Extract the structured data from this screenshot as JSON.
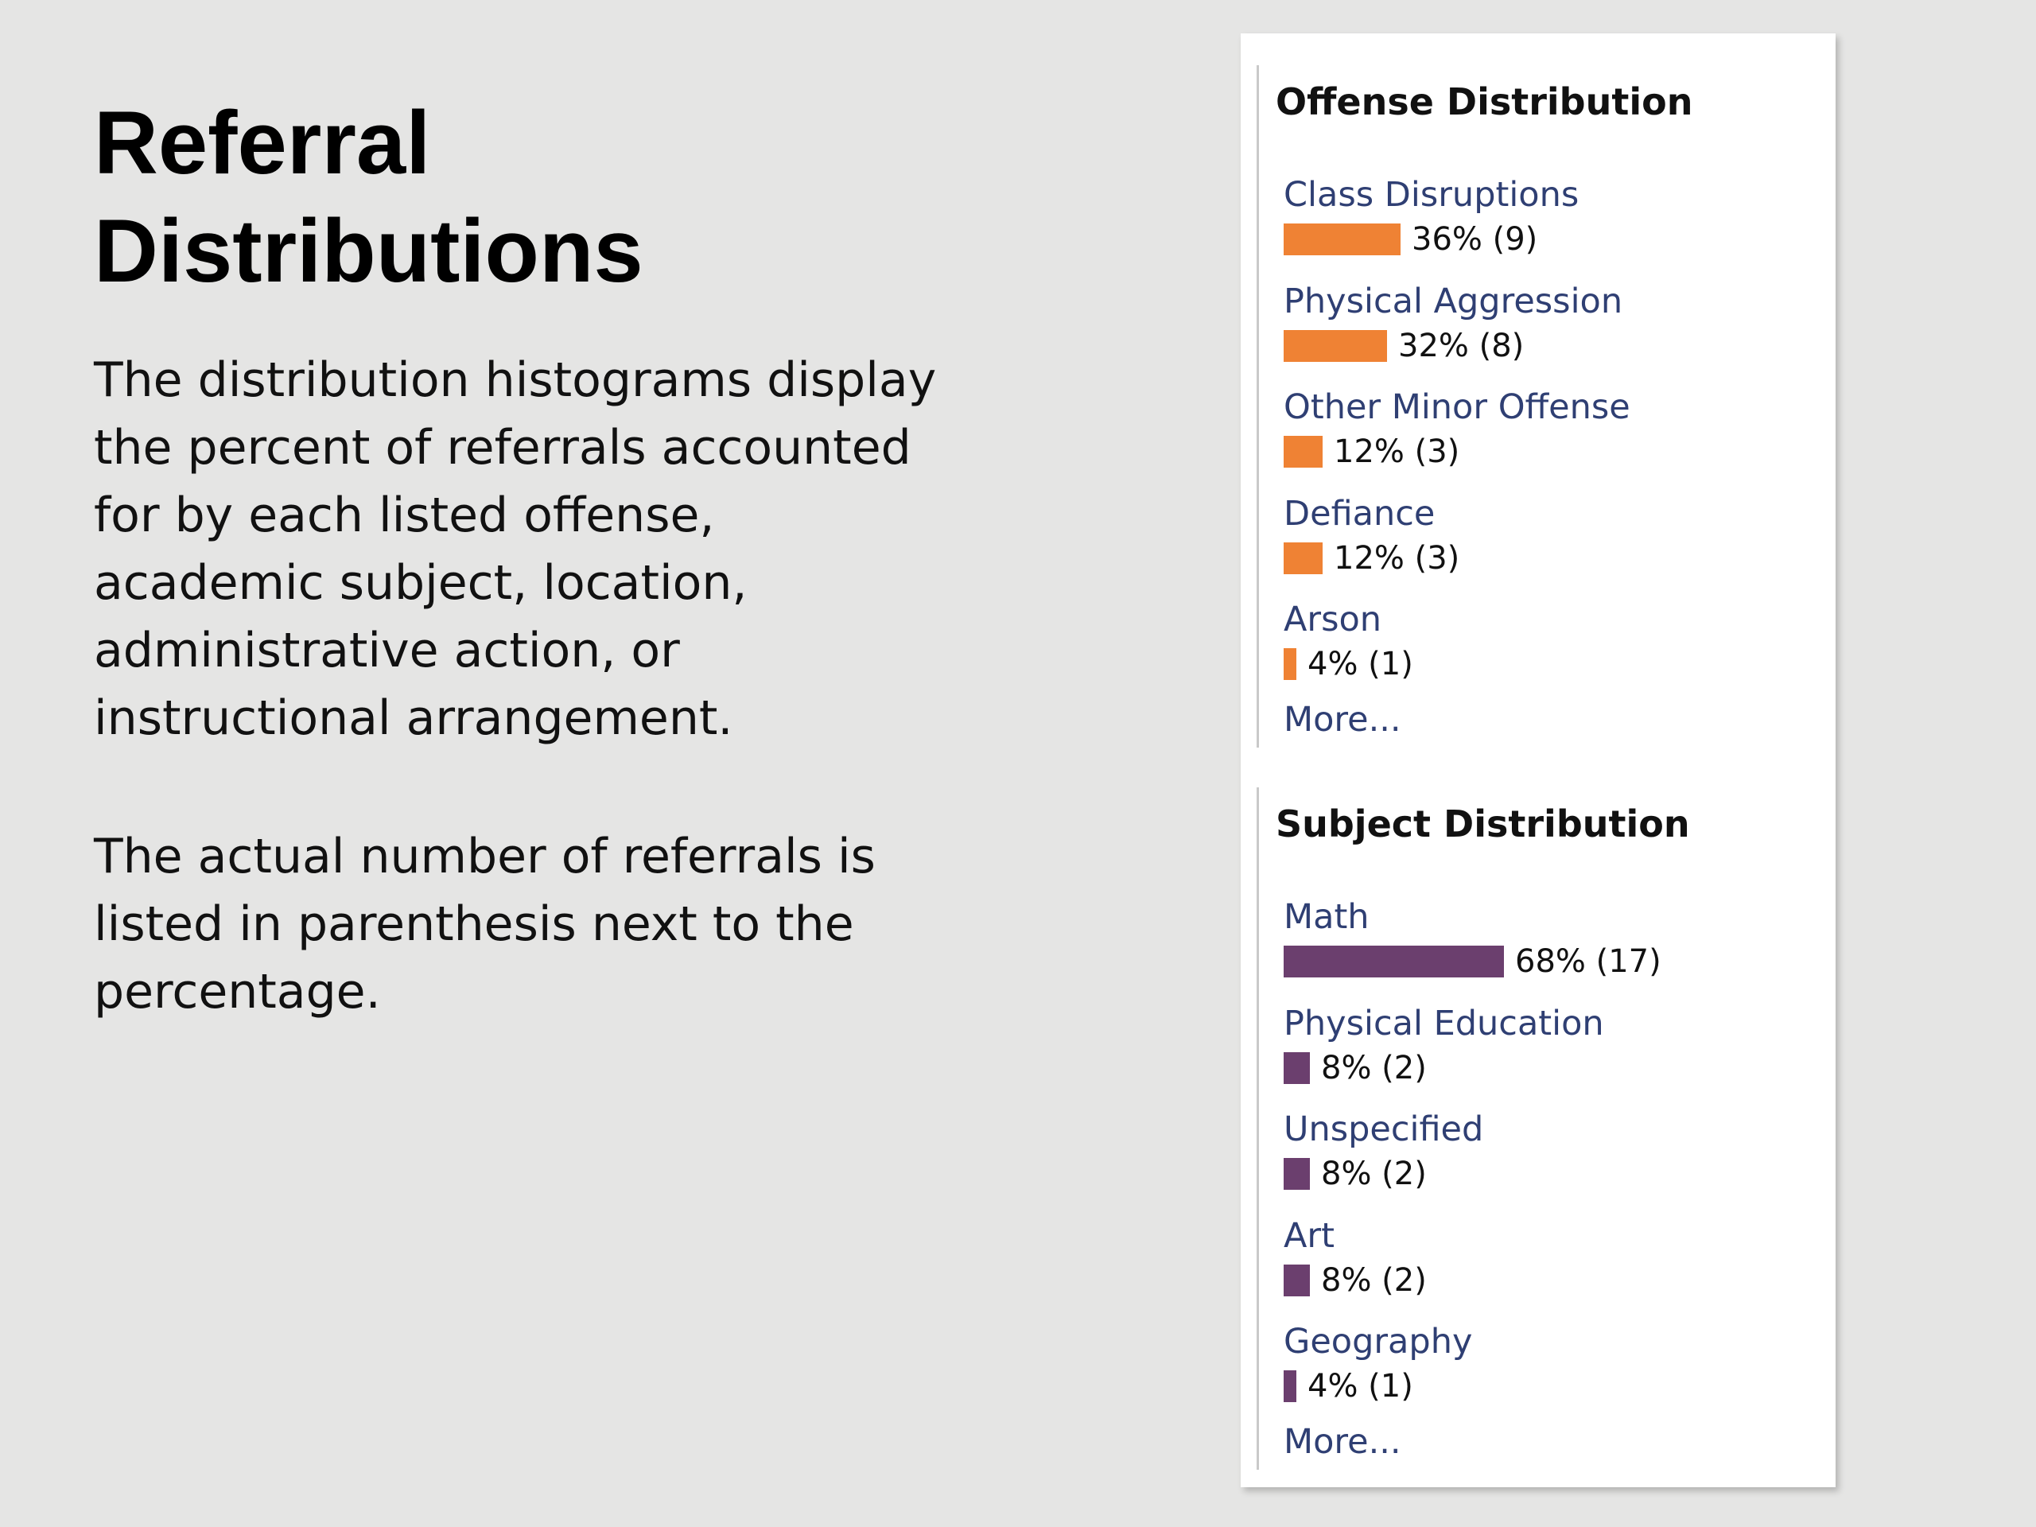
{
  "slide": {
    "title_line1": "Referral",
    "title_line2": "Distributions",
    "paragraph1": "The distribution histograms display the percent of referrals accounted for by each listed offense, academic subject, location, administrative action, or instructional arrangement.",
    "paragraph2": "The actual number of referrals is listed in parenthesis next to the percentage."
  },
  "panel": {
    "offense": {
      "heading": "Offense Distribution",
      "more_label": "More...",
      "bar_color": "#ef8234",
      "items": [
        {
          "label": "Class Disruptions",
          "percent": 36,
          "value_text": "36% (9)"
        },
        {
          "label": "Physical Aggression",
          "percent": 32,
          "value_text": "32% (8)"
        },
        {
          "label": "Other Minor Offense",
          "percent": 12,
          "value_text": "12% (3)"
        },
        {
          "label": "Defiance",
          "percent": 12,
          "value_text": "12% (3)"
        },
        {
          "label": "Arson",
          "percent": 4,
          "value_text": "4% (1)"
        }
      ]
    },
    "subject": {
      "heading": "Subject Distribution",
      "more_label": "More...",
      "bar_color": "#6b3f6e",
      "items": [
        {
          "label": "Math",
          "percent": 68,
          "value_text": "68% (17)"
        },
        {
          "label": "Physical Education",
          "percent": 8,
          "value_text": "8% (2)"
        },
        {
          "label": "Unspecified",
          "percent": 8,
          "value_text": "8% (2)"
        },
        {
          "label": "Art",
          "percent": 8,
          "value_text": "8% (2)"
        },
        {
          "label": "Geography",
          "percent": 4,
          "value_text": "4% (1)"
        }
      ]
    }
  }
}
